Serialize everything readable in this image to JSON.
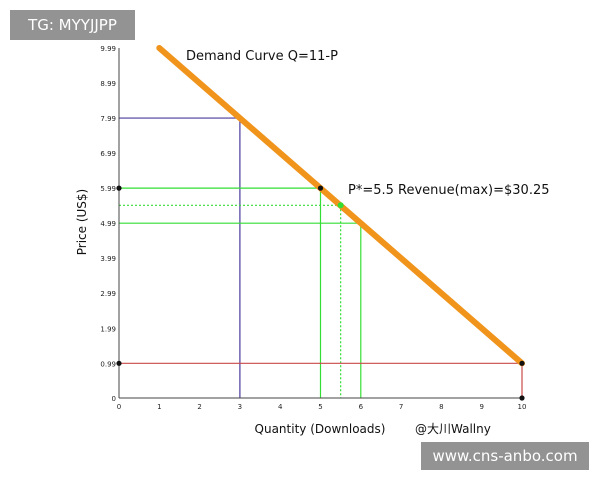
{
  "chart_data": {
    "type": "line",
    "title": "Demand Curve Q=11-P",
    "xlabel": "Quantity (Downloads)",
    "ylabel": "Price (US$)",
    "credit": "@大川Wallny",
    "xlim": [
      0,
      10
    ],
    "ylim": [
      0,
      9.99
    ],
    "x_ticks": [
      "0",
      "1",
      "2",
      "3",
      "4",
      "5",
      "6",
      "7",
      "8",
      "9",
      "10"
    ],
    "y_ticks": [
      "0",
      "0.99",
      "1.99",
      "2.99",
      "3.99",
      "4.99",
      "5.99",
      "6.99",
      "7.99",
      "8.99",
      "9.99"
    ],
    "series": [
      {
        "name": "Demand Curve Q=11-P",
        "points": [
          [
            1,
            9.99
          ],
          [
            10,
            0.99
          ]
        ]
      }
    ],
    "annotation": "P*=5.5 Revenue(max)=$30.25",
    "optimum": {
      "quantity": 5.5,
      "price": 5.5,
      "revenue": 30.25
    },
    "points": [
      {
        "quantity": 5,
        "price": 5.99
      },
      {
        "quantity": 10,
        "price": 0.99
      },
      {
        "quantity": 0,
        "price": 5.99
      },
      {
        "quantity": 0,
        "price": 0.99
      },
      {
        "quantity": 10,
        "price": 0
      }
    ],
    "guides": [
      {
        "name": "p799-q3",
        "color": "#4b3a9e",
        "quantity": 3,
        "price": 7.99,
        "dashed": false
      },
      {
        "name": "p599-q5",
        "color": "#33dd33",
        "quantity": 5,
        "price": 5.99,
        "dashed": false
      },
      {
        "name": "p55-q55",
        "color": "#33dd33",
        "quantity": 5.5,
        "price": 5.5,
        "dashed": true
      },
      {
        "name": "p499-q6",
        "color": "#33dd33",
        "quantity": 6,
        "price": 4.99,
        "dashed": false
      },
      {
        "name": "p099-q10",
        "color": "#c94a4a",
        "quantity": 10,
        "price": 0.99,
        "dashed": false
      }
    ],
    "colors": {
      "demand": "#f0941c",
      "axis": "#444444",
      "point": "#111111",
      "optimum_point": "#33dd33"
    }
  },
  "watermarks": {
    "top": "TG: MYYJJPP",
    "bottom": "www.cns-anbo.com"
  }
}
